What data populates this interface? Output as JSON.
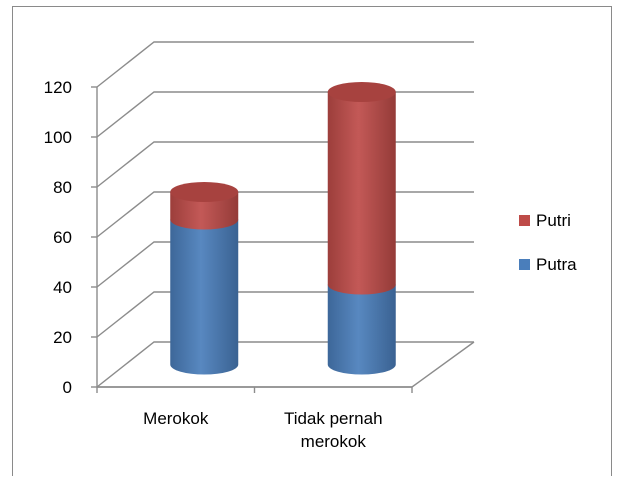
{
  "chart_data": {
    "type": "bar",
    "stacked": true,
    "three_d": true,
    "bar_shape": "cylinder",
    "categories": [
      "Merokok",
      "Tidak pernah\nmerokok"
    ],
    "series": [
      {
        "name": "Putra",
        "values": [
          58,
          32
        ],
        "color": "#4a7ebb"
      },
      {
        "name": "Putri",
        "values": [
          11,
          77
        ],
        "color": "#be4b48"
      }
    ],
    "ylim": [
      0,
      120
    ],
    "yticks": [
      0,
      20,
      40,
      60,
      80,
      100,
      120
    ],
    "grid": true,
    "legend": "right",
    "title": "",
    "xlabel": "",
    "ylabel": ""
  }
}
